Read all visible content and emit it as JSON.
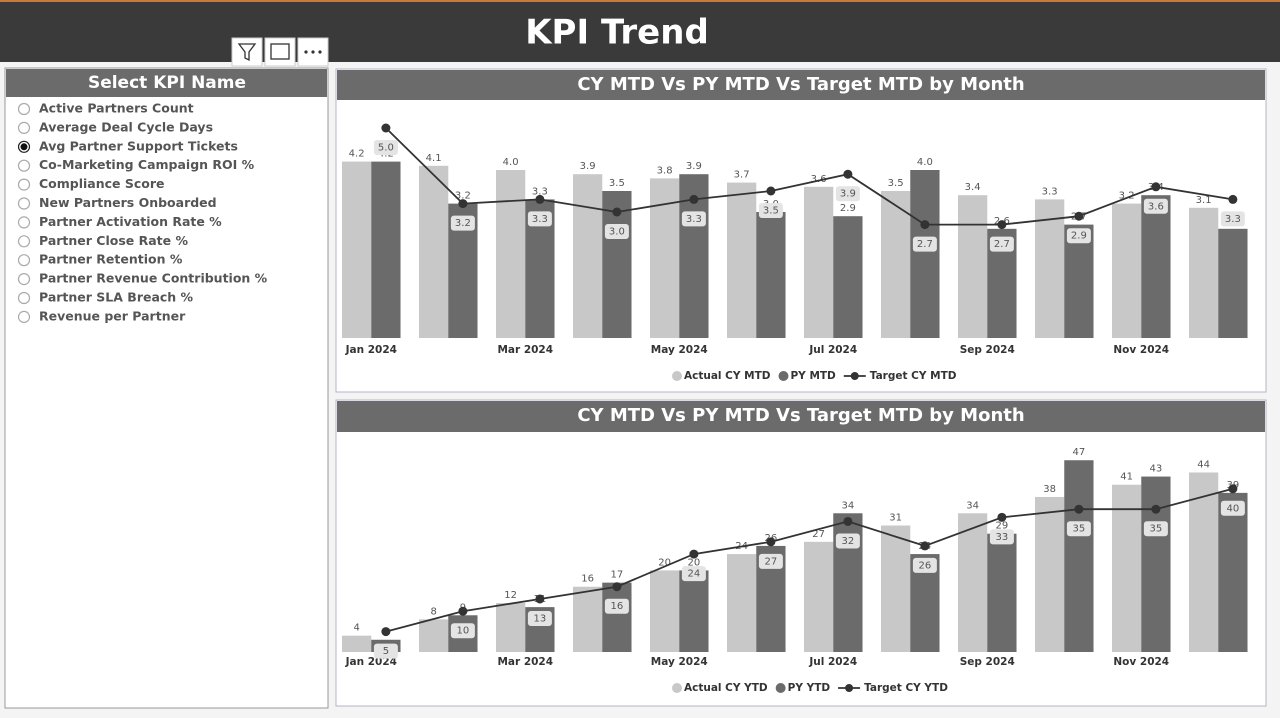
{
  "header": {
    "title": "KPI Trend"
  },
  "slicer": {
    "title": "Select KPI Name",
    "selected": 2,
    "options": [
      "Active Partners Count",
      "Average Deal Cycle Days",
      "Avg Partner Support Tickets",
      "Co-Marketing Campaign ROI %",
      "Compliance Score",
      "New Partners Onboarded",
      "Partner Activation Rate %",
      "Partner Close Rate %",
      "Partner Retention %",
      "Partner Revenue Contribution %",
      "Partner SLA Breach %",
      "Revenue per Partner"
    ]
  },
  "chart_data": [
    {
      "type": "bar-line",
      "title": "CY MTD Vs PY MTD Vs Target MTD by Month",
      "categories": [
        "Jan 2024",
        null,
        "Mar 2024",
        null,
        "May 2024",
        null,
        "Jul 2024",
        null,
        "Sep 2024",
        null,
        "Nov 2024",
        null
      ],
      "ylim": [
        0,
        5.5
      ],
      "series": [
        {
          "name": "Actual CY MTD",
          "kind": "bar",
          "color": "#c8c8c8",
          "values": [
            4.2,
            4.1,
            4.0,
            3.9,
            3.8,
            3.7,
            3.6,
            3.5,
            3.4,
            3.3,
            3.2,
            3.1
          ],
          "value_labels": [
            "4.2",
            "4.1",
            "4.0",
            "3.9",
            "3.8",
            "3.7",
            "3.6",
            "3.5",
            "3.4",
            "3.3",
            "3.2",
            "3.1"
          ]
        },
        {
          "name": "PY MTD",
          "kind": "bar",
          "color": "#6b6b6b",
          "values": [
            4.2,
            3.2,
            3.3,
            3.5,
            3.9,
            3.0,
            2.9,
            4.0,
            2.6,
            2.7,
            3.4,
            2.6
          ],
          "value_labels": [
            "4.2",
            "3.2",
            "3.3",
            "3.5",
            "3.9",
            "3.0",
            "2.9",
            "4.0",
            "2.6",
            "2.7",
            "3.4",
            "2.6"
          ]
        },
        {
          "name": "Target CY MTD",
          "kind": "line",
          "color": "#333333",
          "values": [
            5.0,
            3.2,
            3.3,
            3.0,
            3.3,
            3.5,
            3.9,
            2.7,
            2.7,
            2.9,
            3.6,
            3.3
          ],
          "value_labels": [
            "5.0",
            "3.2",
            "3.3",
            "3.0",
            "3.3",
            "3.5",
            "3.9",
            "2.7",
            "2.7",
            "2.9",
            "3.6",
            "3.3"
          ]
        }
      ]
    },
    {
      "type": "bar-line",
      "title": "CY MTD Vs PY MTD Vs Target MTD by Month",
      "categories": [
        "Jan 2024",
        null,
        "Mar 2024",
        null,
        "May 2024",
        null,
        "Jul 2024",
        null,
        "Sep 2024",
        null,
        "Nov 2024",
        null
      ],
      "ylim": [
        0,
        50
      ],
      "series": [
        {
          "name": "Actual CY YTD",
          "kind": "bar",
          "color": "#c8c8c8",
          "values": [
            4,
            8,
            12,
            16,
            20,
            24,
            27,
            31,
            34,
            38,
            41,
            44
          ]
        },
        {
          "name": "PY YTD",
          "kind": "bar",
          "color": "#6b6b6b",
          "values": [
            3,
            9,
            11,
            17,
            20,
            26,
            34,
            24,
            29,
            47,
            43,
            39
          ]
        },
        {
          "name": "Target CY YTD",
          "kind": "line",
          "color": "#333333",
          "values": [
            5,
            10,
            13,
            16,
            24,
            27,
            32,
            26,
            33,
            35,
            35,
            40
          ]
        }
      ]
    }
  ]
}
